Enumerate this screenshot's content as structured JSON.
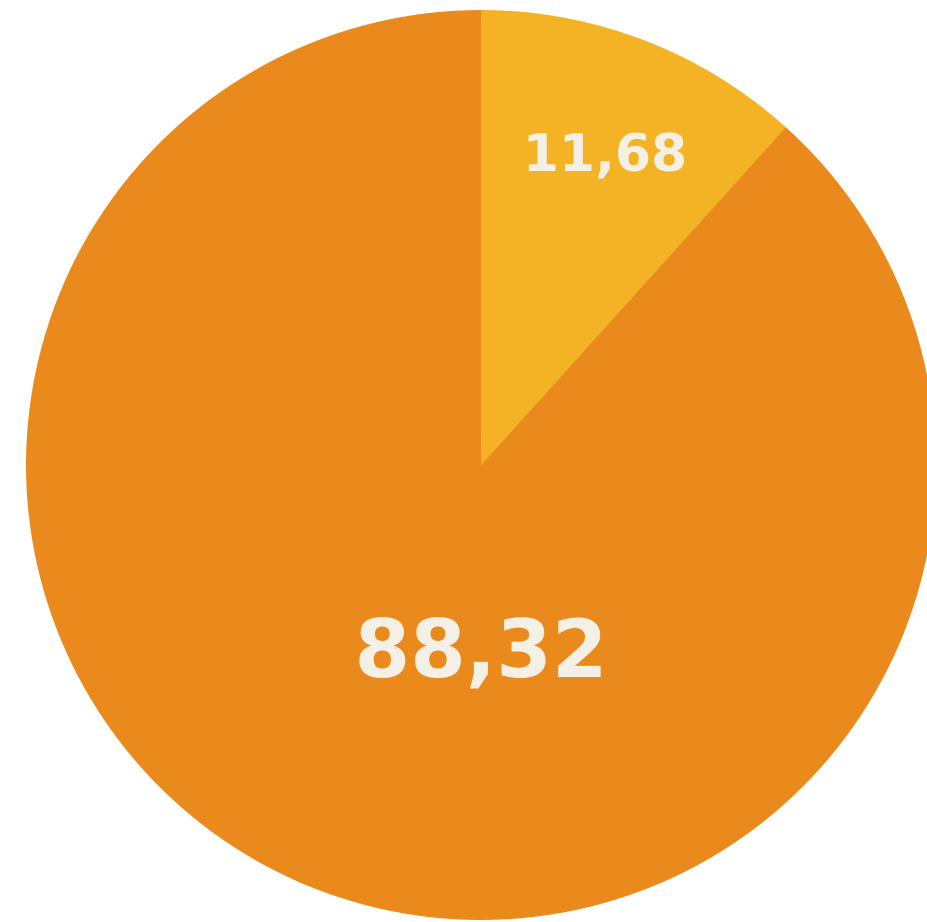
{
  "chart_data": {
    "type": "pie",
    "values": [
      11.68,
      88.32
    ],
    "value_labels": [
      "11,68",
      "88,32"
    ],
    "colors": [
      "#f4b324",
      "#eb8a1c"
    ]
  }
}
